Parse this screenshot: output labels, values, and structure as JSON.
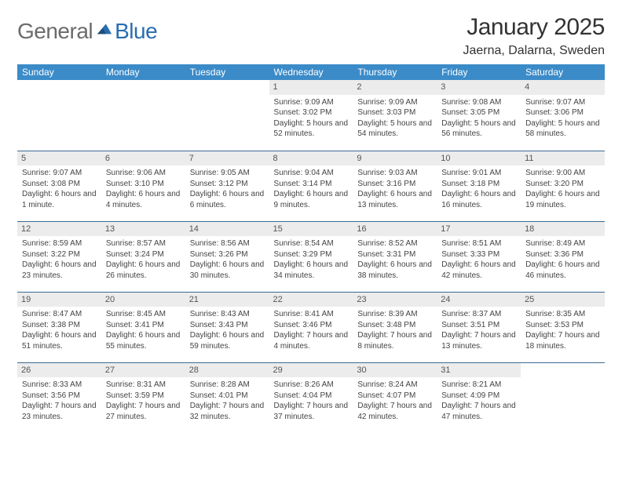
{
  "brand": {
    "part1": "General",
    "part2": "Blue"
  },
  "title": "January 2025",
  "location": "Jaerna, Dalarna, Sweden",
  "colors": {
    "header_bg": "#3b8bc8",
    "header_fg": "#ffffff",
    "daynum_bg": "#ececec",
    "row_divider": "#3b6a94",
    "brand_gray": "#6b6b6b",
    "brand_blue": "#2a6db0",
    "text": "#444444"
  },
  "typography": {
    "title_fontsize": 30,
    "location_fontsize": 16,
    "header_fontsize": 12,
    "cell_fontsize": 10,
    "daynum_fontsize": 11
  },
  "weekdays": [
    "Sunday",
    "Monday",
    "Tuesday",
    "Wednesday",
    "Thursday",
    "Friday",
    "Saturday"
  ],
  "weeks": [
    [
      {
        "day": "",
        "sunrise": "",
        "sunset": "",
        "daylight": ""
      },
      {
        "day": "",
        "sunrise": "",
        "sunset": "",
        "daylight": ""
      },
      {
        "day": "",
        "sunrise": "",
        "sunset": "",
        "daylight": ""
      },
      {
        "day": "1",
        "sunrise": "Sunrise: 9:09 AM",
        "sunset": "Sunset: 3:02 PM",
        "daylight": "Daylight: 5 hours and 52 minutes."
      },
      {
        "day": "2",
        "sunrise": "Sunrise: 9:09 AM",
        "sunset": "Sunset: 3:03 PM",
        "daylight": "Daylight: 5 hours and 54 minutes."
      },
      {
        "day": "3",
        "sunrise": "Sunrise: 9:08 AM",
        "sunset": "Sunset: 3:05 PM",
        "daylight": "Daylight: 5 hours and 56 minutes."
      },
      {
        "day": "4",
        "sunrise": "Sunrise: 9:07 AM",
        "sunset": "Sunset: 3:06 PM",
        "daylight": "Daylight: 5 hours and 58 minutes."
      }
    ],
    [
      {
        "day": "5",
        "sunrise": "Sunrise: 9:07 AM",
        "sunset": "Sunset: 3:08 PM",
        "daylight": "Daylight: 6 hours and 1 minute."
      },
      {
        "day": "6",
        "sunrise": "Sunrise: 9:06 AM",
        "sunset": "Sunset: 3:10 PM",
        "daylight": "Daylight: 6 hours and 4 minutes."
      },
      {
        "day": "7",
        "sunrise": "Sunrise: 9:05 AM",
        "sunset": "Sunset: 3:12 PM",
        "daylight": "Daylight: 6 hours and 6 minutes."
      },
      {
        "day": "8",
        "sunrise": "Sunrise: 9:04 AM",
        "sunset": "Sunset: 3:14 PM",
        "daylight": "Daylight: 6 hours and 9 minutes."
      },
      {
        "day": "9",
        "sunrise": "Sunrise: 9:03 AM",
        "sunset": "Sunset: 3:16 PM",
        "daylight": "Daylight: 6 hours and 13 minutes."
      },
      {
        "day": "10",
        "sunrise": "Sunrise: 9:01 AM",
        "sunset": "Sunset: 3:18 PM",
        "daylight": "Daylight: 6 hours and 16 minutes."
      },
      {
        "day": "11",
        "sunrise": "Sunrise: 9:00 AM",
        "sunset": "Sunset: 3:20 PM",
        "daylight": "Daylight: 6 hours and 19 minutes."
      }
    ],
    [
      {
        "day": "12",
        "sunrise": "Sunrise: 8:59 AM",
        "sunset": "Sunset: 3:22 PM",
        "daylight": "Daylight: 6 hours and 23 minutes."
      },
      {
        "day": "13",
        "sunrise": "Sunrise: 8:57 AM",
        "sunset": "Sunset: 3:24 PM",
        "daylight": "Daylight: 6 hours and 26 minutes."
      },
      {
        "day": "14",
        "sunrise": "Sunrise: 8:56 AM",
        "sunset": "Sunset: 3:26 PM",
        "daylight": "Daylight: 6 hours and 30 minutes."
      },
      {
        "day": "15",
        "sunrise": "Sunrise: 8:54 AM",
        "sunset": "Sunset: 3:29 PM",
        "daylight": "Daylight: 6 hours and 34 minutes."
      },
      {
        "day": "16",
        "sunrise": "Sunrise: 8:52 AM",
        "sunset": "Sunset: 3:31 PM",
        "daylight": "Daylight: 6 hours and 38 minutes."
      },
      {
        "day": "17",
        "sunrise": "Sunrise: 8:51 AM",
        "sunset": "Sunset: 3:33 PM",
        "daylight": "Daylight: 6 hours and 42 minutes."
      },
      {
        "day": "18",
        "sunrise": "Sunrise: 8:49 AM",
        "sunset": "Sunset: 3:36 PM",
        "daylight": "Daylight: 6 hours and 46 minutes."
      }
    ],
    [
      {
        "day": "19",
        "sunrise": "Sunrise: 8:47 AM",
        "sunset": "Sunset: 3:38 PM",
        "daylight": "Daylight: 6 hours and 51 minutes."
      },
      {
        "day": "20",
        "sunrise": "Sunrise: 8:45 AM",
        "sunset": "Sunset: 3:41 PM",
        "daylight": "Daylight: 6 hours and 55 minutes."
      },
      {
        "day": "21",
        "sunrise": "Sunrise: 8:43 AM",
        "sunset": "Sunset: 3:43 PM",
        "daylight": "Daylight: 6 hours and 59 minutes."
      },
      {
        "day": "22",
        "sunrise": "Sunrise: 8:41 AM",
        "sunset": "Sunset: 3:46 PM",
        "daylight": "Daylight: 7 hours and 4 minutes."
      },
      {
        "day": "23",
        "sunrise": "Sunrise: 8:39 AM",
        "sunset": "Sunset: 3:48 PM",
        "daylight": "Daylight: 7 hours and 8 minutes."
      },
      {
        "day": "24",
        "sunrise": "Sunrise: 8:37 AM",
        "sunset": "Sunset: 3:51 PM",
        "daylight": "Daylight: 7 hours and 13 minutes."
      },
      {
        "day": "25",
        "sunrise": "Sunrise: 8:35 AM",
        "sunset": "Sunset: 3:53 PM",
        "daylight": "Daylight: 7 hours and 18 minutes."
      }
    ],
    [
      {
        "day": "26",
        "sunrise": "Sunrise: 8:33 AM",
        "sunset": "Sunset: 3:56 PM",
        "daylight": "Daylight: 7 hours and 23 minutes."
      },
      {
        "day": "27",
        "sunrise": "Sunrise: 8:31 AM",
        "sunset": "Sunset: 3:59 PM",
        "daylight": "Daylight: 7 hours and 27 minutes."
      },
      {
        "day": "28",
        "sunrise": "Sunrise: 8:28 AM",
        "sunset": "Sunset: 4:01 PM",
        "daylight": "Daylight: 7 hours and 32 minutes."
      },
      {
        "day": "29",
        "sunrise": "Sunrise: 8:26 AM",
        "sunset": "Sunset: 4:04 PM",
        "daylight": "Daylight: 7 hours and 37 minutes."
      },
      {
        "day": "30",
        "sunrise": "Sunrise: 8:24 AM",
        "sunset": "Sunset: 4:07 PM",
        "daylight": "Daylight: 7 hours and 42 minutes."
      },
      {
        "day": "31",
        "sunrise": "Sunrise: 8:21 AM",
        "sunset": "Sunset: 4:09 PM",
        "daylight": "Daylight: 7 hours and 47 minutes."
      },
      {
        "day": "",
        "sunrise": "",
        "sunset": "",
        "daylight": ""
      }
    ]
  ]
}
